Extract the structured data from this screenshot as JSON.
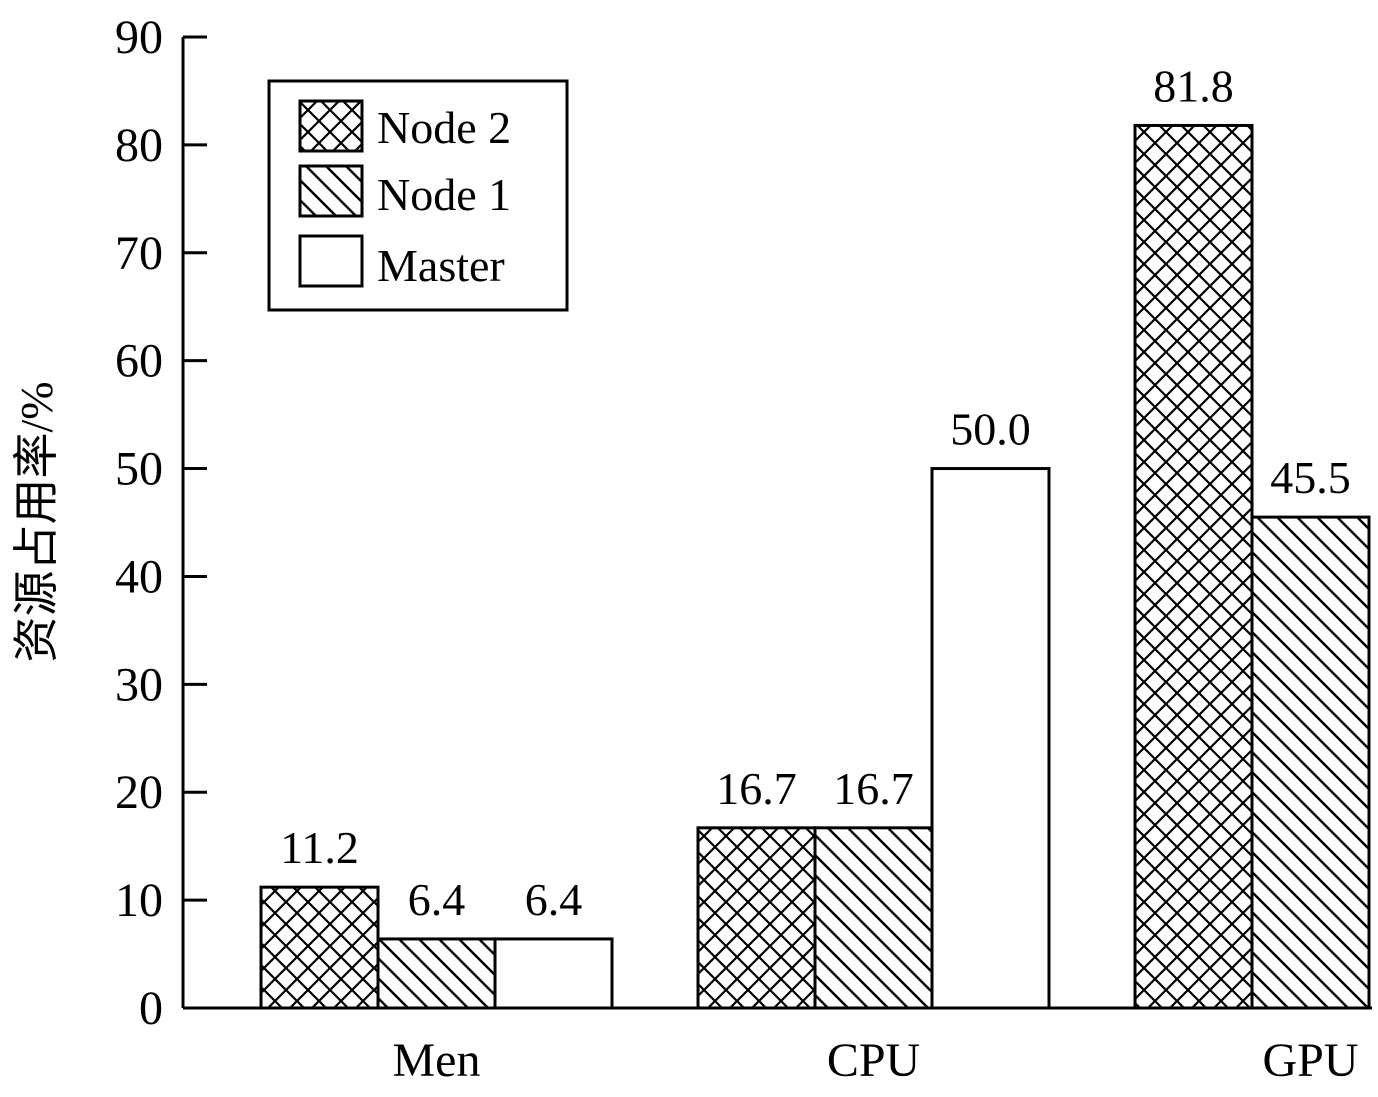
{
  "chart_data": {
    "type": "bar",
    "ylabel": "资源占用率/%",
    "xlabel": "",
    "ylim": [
      0,
      90
    ],
    "yticks": [
      0,
      10,
      20,
      30,
      40,
      50,
      60,
      70,
      80,
      90
    ],
    "categories": [
      "Men",
      "CPU",
      "GPU"
    ],
    "legend_position": "top-left",
    "grid": false,
    "series": [
      {
        "name": "Node 2",
        "pattern": "crosshatch",
        "values": [
          11.2,
          16.7,
          81.8
        ],
        "labels": [
          "11.2",
          "16.7",
          "81.8"
        ]
      },
      {
        "name": "Node 1",
        "pattern": "diagonal",
        "values": [
          6.4,
          16.7,
          45.5
        ],
        "labels": [
          "6.4",
          "16.7",
          "45.5"
        ]
      },
      {
        "name": "Master",
        "pattern": "none",
        "values": [
          6.4,
          50.0,
          null
        ],
        "labels": [
          "6.4",
          "50.0",
          ""
        ]
      }
    ],
    "colors": {
      "stroke": "#000000",
      "fill": "#ffffff"
    }
  }
}
